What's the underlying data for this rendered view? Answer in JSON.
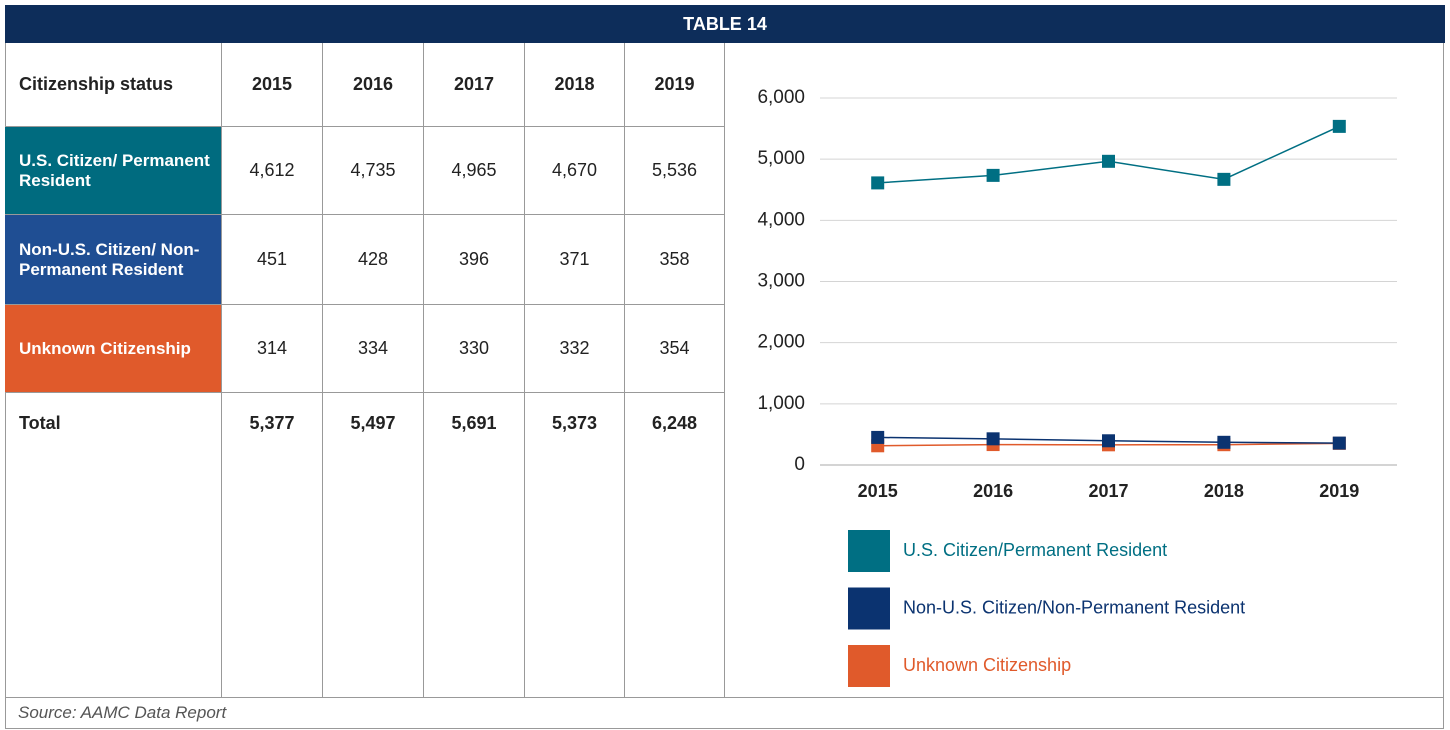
{
  "header": {
    "title": "TABLE 14"
  },
  "table": {
    "columns": [
      "Citizenship status",
      "2015",
      "2016",
      "2017",
      "2018",
      "2019"
    ],
    "rows": [
      [
        "U.S. Citizen/ Permanent Resident",
        "4,612",
        "4,735",
        "4,965",
        "4,670",
        "5,536"
      ],
      [
        "Non-U.S. Citizen/ Non-Permanent Resident",
        "451",
        "428",
        "396",
        "371",
        "358"
      ],
      [
        "Unknown Citizenship",
        "314",
        "334",
        "330",
        "332",
        "354"
      ],
      [
        "Total",
        "5,377",
        "5,497",
        "5,691",
        "5,373",
        "6,248"
      ]
    ]
  },
  "chart_data": {
    "type": "line",
    "categories": [
      "2015",
      "2016",
      "2017",
      "2018",
      "2019"
    ],
    "series": [
      {
        "name": "U.S. Citizen/Permanent Resident",
        "color": "#006f83",
        "values": [
          4612,
          4735,
          4965,
          4670,
          5536
        ]
      },
      {
        "name": "Non-U.S. Citizen/Non-Permanent Resident",
        "color": "#0b3370",
        "values": [
          451,
          428,
          396,
          371,
          358
        ]
      },
      {
        "name": "Unknown Citizenship",
        "color": "#e05a2b",
        "values": [
          314,
          334,
          330,
          332,
          354
        ]
      }
    ],
    "ylim": [
      0,
      6000
    ],
    "yticks": [
      0,
      {
        "value": 1000,
        "label": "1,000"
      },
      {
        "value": 2000,
        "label": "2,000"
      },
      {
        "value": 3000,
        "label": "3,000"
      },
      {
        "value": 4000,
        "label": "4,000"
      },
      {
        "value": 5000,
        "label": "5,000"
      },
      {
        "value": 6000,
        "label": "6,000"
      }
    ],
    "grid": true
  },
  "source": "Source: AAMC Data Report"
}
